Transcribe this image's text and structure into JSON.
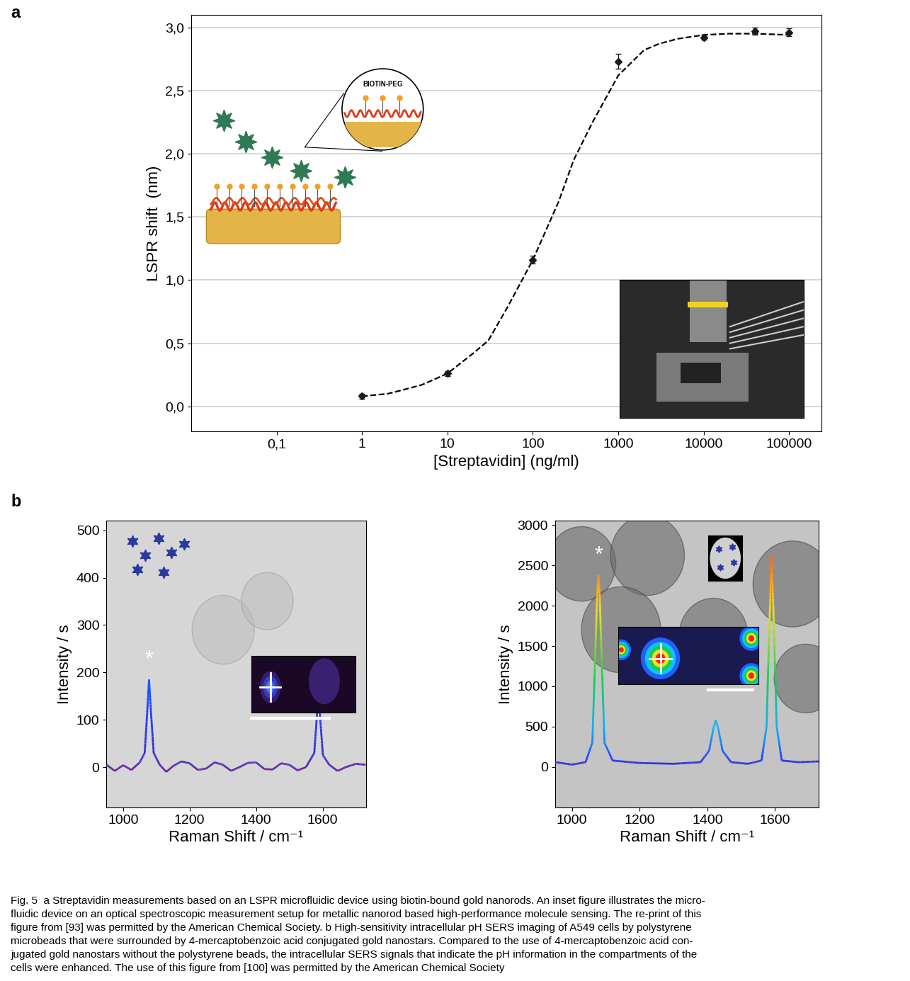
{
  "chart_data": [
    {
      "type": "scatter",
      "title": "a",
      "xlabel": "[Streptavidin] (ng/ml)",
      "ylabel": "LSPR shift  (nm)",
      "log": "x",
      "grid": true,
      "xlim": [
        0.01,
        240000
      ],
      "xticks": [
        {
          "value": 0.1,
          "label": "0,1"
        },
        1,
        10,
        100,
        1000,
        10000,
        100000
      ],
      "ylim": [
        -0.2,
        3.1
      ],
      "yticks": [
        {
          "value": 0.0,
          "label": "0,0"
        },
        {
          "value": 0.5,
          "label": "0,5"
        },
        {
          "value": 1.0,
          "label": "1,0"
        },
        {
          "value": 1.5,
          "label": "1,5"
        },
        {
          "value": 2.0,
          "label": "2,0"
        },
        {
          "value": 2.5,
          "label": "2,5"
        },
        {
          "value": 3.0,
          "label": "3,0"
        }
      ],
      "annotations": [
        "BIOTIN-PEG"
      ],
      "series": [
        {
          "type": "scatter",
          "marker": "diamond",
          "color": "#1a1a1a",
          "x": [
            1,
            10,
            100,
            1000,
            10000,
            40000,
            100000
          ],
          "values": [
            0.08,
            0.26,
            1.16,
            2.73,
            2.92,
            2.97,
            2.96
          ],
          "errors": [
            0.02,
            0.02,
            0.03,
            0.06,
            0.02,
            0.03,
            0.03
          ]
        },
        {
          "type": "line",
          "line_style": "dashed",
          "color": "#000000",
          "x": [
            1,
            2,
            3,
            5,
            10,
            20,
            30,
            50,
            100,
            200,
            300,
            500,
            1000,
            2000,
            3000,
            5000,
            10000,
            20000,
            40000,
            100000
          ],
          "values": [
            0.08,
            0.1,
            0.13,
            0.17,
            0.26,
            0.42,
            0.52,
            0.78,
            1.16,
            1.62,
            1.95,
            2.25,
            2.62,
            2.82,
            2.87,
            2.91,
            2.94,
            2.95,
            2.95,
            2.94
          ]
        }
      ]
    },
    {
      "type": "line",
      "title": "b",
      "xlabel": "Raman Shift / cm⁻¹",
      "ylabel": "Intensity / s",
      "xlim": [
        950,
        1730
      ],
      "xticks": [
        1000,
        1200,
        1400,
        1600
      ],
      "ylim": [
        -85,
        520
      ],
      "yticks": [
        0,
        100,
        200,
        300,
        400,
        500
      ],
      "annotations": [
        "*"
      ],
      "x": [
        950,
        975,
        1000,
        1025,
        1050,
        1065,
        1072,
        1078,
        1084,
        1092,
        1110,
        1130,
        1150,
        1175,
        1200,
        1225,
        1250,
        1275,
        1300,
        1325,
        1350,
        1375,
        1400,
        1425,
        1450,
        1475,
        1500,
        1525,
        1550,
        1575,
        1582,
        1587,
        1593,
        1601,
        1620,
        1645,
        1670,
        1700,
        1730
      ],
      "values": [
        5,
        -8,
        4,
        -6,
        10,
        30,
        110,
        185,
        115,
        30,
        5,
        -10,
        2,
        12,
        8,
        -6,
        -3,
        10,
        5,
        -8,
        0,
        9,
        10,
        -4,
        -5,
        8,
        5,
        -7,
        0,
        30,
        100,
        160,
        100,
        25,
        5,
        -8,
        0,
        7,
        5
      ]
    },
    {
      "type": "line",
      "xlabel": "Raman Shift / cm⁻¹",
      "ylabel": "Intensity / s",
      "xlim": [
        950,
        1730
      ],
      "xticks": [
        1000,
        1200,
        1400,
        1600
      ],
      "ylim": [
        -500,
        3050
      ],
      "yticks": [
        0,
        500,
        1000,
        1500,
        2000,
        2500,
        3000
      ],
      "annotations": [
        "*"
      ],
      "x": [
        950,
        1000,
        1040,
        1060,
        1068,
        1074,
        1078,
        1082,
        1088,
        1096,
        1120,
        1200,
        1300,
        1380,
        1405,
        1418,
        1425,
        1432,
        1445,
        1470,
        1520,
        1560,
        1575,
        1583,
        1590,
        1597,
        1605,
        1620,
        1670,
        1730
      ],
      "values": [
        60,
        30,
        60,
        300,
        1300,
        2100,
        2380,
        2100,
        1300,
        300,
        80,
        50,
        40,
        60,
        200,
        480,
        580,
        480,
        200,
        60,
        40,
        80,
        500,
        1700,
        2620,
        1700,
        500,
        80,
        60,
        70
      ]
    }
  ],
  "caption": [
    "Fig. 5  a Streptavidin measurements based on an LSPR microfluidic device using biotin-bound gold nanorods. An inset figure illustrates the micro-",
    "fluidic device on an optical spectroscopic measurement setup for metallic nanorod based high-performance molecule sensing. The re-print of this",
    "figure from [93] was permitted by the American Chemical Society. b High-sensitivity intracellular pH SERS imaging of A549 cells by polystyrene",
    "microbeads that were surrounded by 4-mercaptobenzoic acid conjugated gold nanostars. Compared to the use of 4-mercaptobenzoic acid con-",
    "jugated gold nanostars without the polystyrene beads, the intracellular SERS signals that indicate the pH information in the compartments of the",
    "cells were enhanced. The use of this figure from [100] was permitted by the American Chemical Society"
  ]
}
